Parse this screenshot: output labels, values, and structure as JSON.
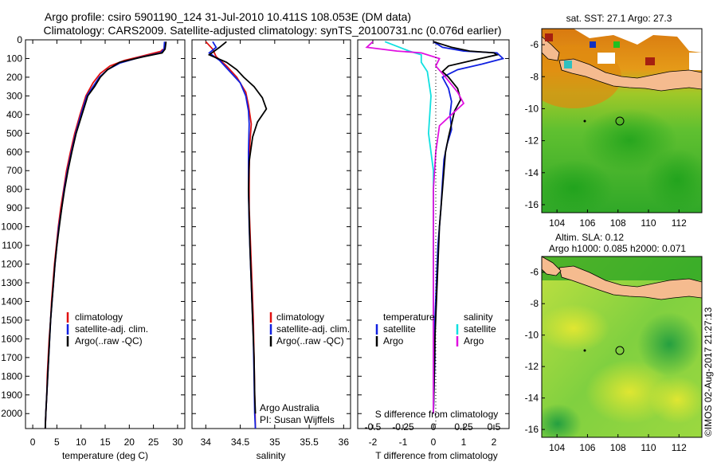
{
  "header": {
    "line1": "Argo profile: csiro 5901190_124 31-Jul-2010 10.411S 108.053E (DM data)",
    "line2": "Climatology: CARS2009. Satellite-adjusted climatology: synTS_20100731.nc (0.076d earlier)"
  },
  "colors": {
    "climatology": "#e01010",
    "satellite": "#1020e0",
    "argo": "#000000",
    "sal_sat": "#10e0e0",
    "sal_argo": "#e010e0"
  },
  "chart_data": [
    {
      "type": "line",
      "id": "temperature",
      "xlabel": "temperature (deg C)",
      "xlim": [
        -1.5,
        31.5
      ],
      "ylim": [
        2080,
        0
      ],
      "xticks": [
        0,
        5,
        10,
        15,
        20,
        25,
        30
      ],
      "yticks": [
        0,
        100,
        200,
        300,
        400,
        500,
        600,
        700,
        800,
        900,
        1000,
        1100,
        1200,
        1300,
        1400,
        1500,
        1600,
        1700,
        1800,
        1900,
        2000
      ],
      "legend": [
        "climatology",
        "satellite-adj. clim.",
        "Argo(..raw -QC)"
      ],
      "series": [
        {
          "name": "climatology",
          "points": [
            [
              27.0,
              50
            ],
            [
              26.5,
              62
            ],
            [
              23,
              85
            ],
            [
              19,
              110
            ],
            [
              16,
              140
            ],
            [
              14,
              180
            ],
            [
              12.5,
              230
            ],
            [
              11,
              300
            ],
            [
              9.8,
              400
            ],
            [
              8.7,
              500
            ],
            [
              7.8,
              600
            ],
            [
              7.0,
              700
            ],
            [
              6.4,
              800
            ],
            [
              5.8,
              900
            ],
            [
              5.3,
              1000
            ],
            [
              4.9,
              1100
            ],
            [
              4.5,
              1200
            ],
            [
              4.2,
              1300
            ],
            [
              3.9,
              1400
            ],
            [
              3.7,
              1500
            ],
            [
              3.4,
              1600
            ],
            [
              3.2,
              1700
            ],
            [
              3.0,
              1800
            ],
            [
              2.9,
              1900
            ],
            [
              2.7,
              2000
            ],
            [
              2.6,
              2080
            ]
          ]
        },
        {
          "name": "satellite-adj. clim.",
          "points": [
            [
              27.3,
              10
            ],
            [
              27.2,
              50
            ],
            [
              26.5,
              70
            ],
            [
              22,
              95
            ],
            [
              18,
              125
            ],
            [
              15.5,
              160
            ],
            [
              13.8,
              200
            ],
            [
              12.5,
              250
            ],
            [
              11.2,
              300
            ],
            [
              10,
              400
            ],
            [
              8.9,
              500
            ],
            [
              8.0,
              600
            ],
            [
              7.2,
              700
            ],
            [
              6.5,
              800
            ],
            [
              6.0,
              900
            ],
            [
              5.4,
              1000
            ],
            [
              5.0,
              1100
            ],
            [
              4.6,
              1200
            ],
            [
              4.3,
              1300
            ],
            [
              4.0,
              1400
            ],
            [
              3.7,
              1500
            ],
            [
              3.5,
              1600
            ],
            [
              3.3,
              1700
            ],
            [
              3.1,
              1800
            ],
            [
              2.9,
              1900
            ],
            [
              2.7,
              2000
            ],
            [
              2.6,
              2080
            ]
          ]
        },
        {
          "name": "Argo(..raw -QC)",
          "points": [
            [
              27.6,
              10
            ],
            [
              27.4,
              50
            ],
            [
              26.8,
              70
            ],
            [
              23,
              90
            ],
            [
              18,
              120
            ],
            [
              15.5,
              160
            ],
            [
              14,
              200
            ],
            [
              12.8,
              250
            ],
            [
              11.4,
              300
            ],
            [
              10.2,
              400
            ],
            [
              9.0,
              500
            ],
            [
              8.1,
              600
            ],
            [
              7.3,
              700
            ],
            [
              6.6,
              800
            ],
            [
              6.0,
              900
            ],
            [
              5.5,
              1000
            ],
            [
              5.0,
              1100
            ],
            [
              4.6,
              1200
            ],
            [
              4.3,
              1300
            ],
            [
              4.0,
              1400
            ],
            [
              3.7,
              1500
            ],
            [
              3.5,
              1600
            ],
            [
              3.3,
              1700
            ],
            [
              3.1,
              1800
            ],
            [
              2.9,
              1900
            ],
            [
              2.7,
              2000
            ],
            [
              2.6,
              2080
            ]
          ]
        }
      ]
    },
    {
      "type": "line",
      "id": "salinity",
      "xlabel": "salinity",
      "xlim": [
        33.8,
        36.1
      ],
      "ylim": [
        2080,
        0
      ],
      "xticks": [
        34,
        34.5,
        35,
        35.5,
        36
      ],
      "legend": [
        "climatology",
        "satellite-adj. clim.",
        "Argo(..raw -QC)"
      ],
      "annotation": [
        "Argo Australia",
        "PI: Susan Wijffels"
      ],
      "series": [
        {
          "name": "climatology",
          "points": [
            [
              34.0,
              10
            ],
            [
              34.1,
              50
            ],
            [
              34.15,
              90
            ],
            [
              34.3,
              140
            ],
            [
              34.45,
              200
            ],
            [
              34.58,
              280
            ],
            [
              34.62,
              350
            ],
            [
              34.66,
              450
            ],
            [
              34.64,
              550
            ],
            [
              34.63,
              700
            ],
            [
              34.63,
              900
            ],
            [
              34.65,
              1100
            ],
            [
              34.67,
              1300
            ],
            [
              34.69,
              1500
            ],
            [
              34.7,
              1700
            ],
            [
              34.71,
              1900
            ],
            [
              34.72,
              2080
            ]
          ]
        },
        {
          "name": "satellite-adj. clim.",
          "points": [
            [
              34.1,
              10
            ],
            [
              34.15,
              40
            ],
            [
              34.05,
              70
            ],
            [
              34.2,
              110
            ],
            [
              34.35,
              170
            ],
            [
              34.5,
              230
            ],
            [
              34.58,
              300
            ],
            [
              34.62,
              380
            ],
            [
              34.63,
              450
            ],
            [
              34.62,
              600
            ],
            [
              34.62,
              800
            ],
            [
              34.63,
              1000
            ],
            [
              34.65,
              1200
            ],
            [
              34.67,
              1400
            ],
            [
              34.69,
              1600
            ],
            [
              34.7,
              1800
            ],
            [
              34.71,
              2000
            ],
            [
              34.72,
              2080
            ]
          ]
        },
        {
          "name": "Argo(..raw -QC)",
          "points": [
            [
              34.3,
              10
            ],
            [
              34.2,
              40
            ],
            [
              34.05,
              80
            ],
            [
              34.3,
              120
            ],
            [
              34.45,
              160
            ],
            [
              34.55,
              200
            ],
            [
              34.7,
              250
            ],
            [
              34.82,
              310
            ],
            [
              34.88,
              370
            ],
            [
              34.75,
              440
            ],
            [
              34.68,
              520
            ],
            [
              34.63,
              650
            ],
            [
              34.62,
              800
            ],
            [
              34.63,
              950
            ],
            [
              34.64,
              1100
            ],
            [
              34.66,
              1300
            ],
            [
              34.68,
              1500
            ],
            [
              34.7,
              1700
            ],
            [
              34.71,
              1900
            ],
            [
              34.72,
              2000
            ]
          ]
        }
      ]
    },
    {
      "type": "line",
      "id": "difference",
      "xlabel": "T difference from climatology",
      "xlabel_top": "S difference from climatology",
      "xlim": [
        -2.5,
        2.5
      ],
      "ylim": [
        2080,
        0
      ],
      "xticks": [
        -2,
        -1,
        0,
        1,
        2
      ],
      "xticks_top": [
        -0.5,
        -0.25,
        0,
        0.25,
        0.5
      ],
      "legend_left": [
        "temperature",
        "satellite",
        "Argo"
      ],
      "legend_right": [
        "salinity",
        "satellite",
        "Argo"
      ],
      "series": [
        {
          "name": "T satellite",
          "points": [
            [
              0,
              10
            ],
            [
              0.3,
              40
            ],
            [
              1.0,
              60
            ],
            [
              2.1,
              70
            ],
            [
              2.3,
              100
            ],
            [
              1.6,
              130
            ],
            [
              0.8,
              160
            ],
            [
              0.3,
              200
            ],
            [
              0.5,
              260
            ],
            [
              0.6,
              330
            ],
            [
              0.55,
              400
            ],
            [
              0.6,
              480
            ],
            [
              0.45,
              560
            ],
            [
              0.35,
              640
            ],
            [
              0.3,
              760
            ],
            [
              0.25,
              900
            ],
            [
              0.2,
              1000
            ],
            [
              0.15,
              1100
            ],
            [
              0.1,
              1300
            ],
            [
              0.05,
              1500
            ],
            [
              0.05,
              1700
            ],
            [
              0,
              2000
            ]
          ]
        },
        {
          "name": "T Argo",
          "points": [
            [
              0,
              10
            ],
            [
              0.6,
              40
            ],
            [
              1.2,
              60
            ],
            [
              2.0,
              70
            ],
            [
              2.1,
              80
            ],
            [
              1.3,
              110
            ],
            [
              0.5,
              140
            ],
            [
              0.3,
              170
            ],
            [
              0.5,
              200
            ],
            [
              0.8,
              260
            ],
            [
              0.9,
              320
            ],
            [
              0.7,
              380
            ],
            [
              0.6,
              450
            ],
            [
              0.5,
              520
            ],
            [
              0.4,
              600
            ],
            [
              0.35,
              700
            ],
            [
              0.3,
              800
            ],
            [
              0.2,
              1000
            ],
            [
              0.15,
              1200
            ],
            [
              0.1,
              1400
            ],
            [
              0.05,
              1600
            ],
            [
              0.03,
              1800
            ],
            [
              0,
              2000
            ]
          ]
        },
        {
          "name": "S satellite",
          "points": [
            [
              -0.4,
              10
            ],
            [
              -0.2,
              60
            ],
            [
              -0.1,
              80
            ],
            [
              -0.1,
              120
            ],
            [
              -0.05,
              170
            ],
            [
              -0.02,
              300
            ],
            [
              -0.04,
              500
            ],
            [
              0,
              700
            ],
            [
              0,
              1000
            ],
            [
              0,
              1400
            ],
            [
              0,
              1700
            ],
            [
              0,
              2000
            ]
          ]
        },
        {
          "name": "S Argo",
          "points": [
            [
              -0.5,
              10
            ],
            [
              -0.55,
              40
            ],
            [
              -0.3,
              60
            ],
            [
              -0.1,
              70
            ],
            [
              0.05,
              100
            ],
            [
              0.02,
              140
            ],
            [
              0.1,
              200
            ],
            [
              0.2,
              280
            ],
            [
              0.25,
              340
            ],
            [
              0.15,
              400
            ],
            [
              0.05,
              460
            ],
            [
              0.02,
              600
            ],
            [
              0,
              800
            ],
            [
              0,
              1200
            ],
            [
              0,
              1600
            ],
            [
              0,
              2000
            ]
          ]
        }
      ]
    },
    {
      "type": "heatmap",
      "id": "sst-map",
      "title": "sat. SST: 27.1  Argo: 27.3",
      "xticks": [
        104,
        106,
        108,
        110,
        112
      ],
      "yticks": [
        -6,
        -8,
        -10,
        -12,
        -14,
        -16
      ],
      "xlim": [
        103,
        113.5
      ],
      "ylim": [
        -16.5,
        -5
      ]
    },
    {
      "type": "heatmap",
      "id": "sla-map",
      "title_line1": "Altim. SLA: 0.12",
      "title_line2": "Argo h1000: 0.085 h2000: 0.071",
      "xticks": [
        104,
        106,
        108,
        110,
        112
      ],
      "yticks": [
        -6,
        -8,
        -10,
        -12,
        -14,
        -16
      ],
      "xlim": [
        103,
        113.5
      ],
      "ylim": [
        -16.5,
        -5
      ]
    }
  ],
  "marker": {
    "lon": 108.053,
    "lat": -10.411
  },
  "watermark": "©IMOS 02-Aug-2017 21:27:13"
}
